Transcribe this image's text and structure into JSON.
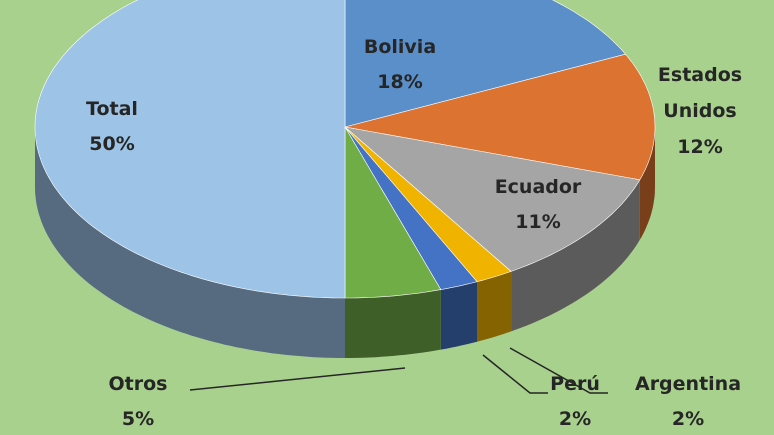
{
  "chart_data": {
    "type": "pie",
    "categories": [
      "Bolivia",
      "Estados Unidos",
      "Ecuador",
      "Argentina",
      "Perú",
      "Otros",
      "Total"
    ],
    "values": [
      18,
      12,
      11,
      2,
      2,
      5,
      50
    ],
    "value_labels": [
      "18%",
      "12%",
      "11%",
      "2%",
      "2%",
      "5%",
      "50%"
    ],
    "colors": [
      "#5b8fc9",
      "#dc7331",
      "#a5a5a5",
      "#f0b400",
      "#4472c4",
      "#70ad47",
      "#9dc3e6"
    ]
  }
}
